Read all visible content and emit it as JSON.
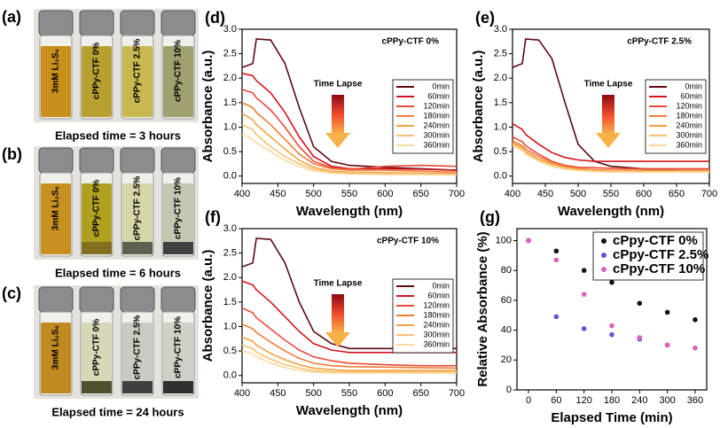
{
  "photo_panels": [
    {
      "label": "(a)",
      "caption": "Elapsed time = 3 hours",
      "vial_labels": [
        "3mM Li₂S₆",
        "cPPy-CTF 0%",
        "cPPy-CTF 2.5%",
        "cPPy-CTF 10%"
      ]
    },
    {
      "label": "(b)",
      "caption": "Elapsed time = 6 hours",
      "vial_labels": [
        "3mM Li₂S₆",
        "cPPy-CTF 0%",
        "cPPy-CTF 2.5%",
        "cPPy-CTF 10%"
      ]
    },
    {
      "label": "(c)",
      "caption": "Elapsed time = 24 hours",
      "vial_labels": [
        "3mM Li₂S₆",
        "cPPy-CTF 0%",
        "cPPy-CTF 2.5%",
        "cPPy-CTF 10%"
      ]
    }
  ],
  "chart_data": [
    {
      "type": "line",
      "panel_label": "(d)",
      "title": "cPPy-CTF 0%",
      "annotation": "Time Lapse",
      "x_label": "Wavelength (nm)",
      "y_label": "Absorbance (a.u.)",
      "x": [
        400,
        415,
        420,
        440,
        460,
        480,
        500,
        525,
        550,
        600,
        650,
        700
      ],
      "series": [
        {
          "name": "0min",
          "color": "#5c0a12",
          "values": [
            2.22,
            2.3,
            2.8,
            2.78,
            2.3,
            1.4,
            0.6,
            0.3,
            0.22,
            0.18,
            0.15,
            0.12
          ]
        },
        {
          "name": "60min",
          "color": "#d2141e",
          "values": [
            2.1,
            2.05,
            1.95,
            1.7,
            1.3,
            0.8,
            0.4,
            0.2,
            0.15,
            0.15,
            0.14,
            0.12
          ]
        },
        {
          "name": "120min",
          "color": "#e84a3a",
          "values": [
            1.77,
            1.7,
            1.6,
            1.35,
            1.0,
            0.6,
            0.3,
            0.17,
            0.14,
            0.2,
            0.22,
            0.2
          ]
        },
        {
          "name": "180min",
          "color": "#f07a38",
          "values": [
            1.5,
            1.4,
            1.3,
            1.05,
            0.75,
            0.45,
            0.25,
            0.15,
            0.12,
            0.12,
            0.1,
            0.08
          ]
        },
        {
          "name": "240min",
          "color": "#f5a040",
          "values": [
            1.28,
            1.15,
            1.05,
            0.8,
            0.55,
            0.32,
            0.18,
            0.1,
            0.08,
            0.07,
            0.06,
            0.05
          ]
        },
        {
          "name": "300min",
          "color": "#f8c070",
          "values": [
            1.05,
            0.95,
            0.85,
            0.6,
            0.4,
            0.25,
            0.14,
            0.08,
            0.06,
            0.05,
            0.04,
            0.03
          ]
        },
        {
          "name": "360min",
          "color": "#fbd9a0",
          "values": [
            0.85,
            0.75,
            0.68,
            0.5,
            0.32,
            0.2,
            0.1,
            0.06,
            0.04,
            0.03,
            0.03,
            0.02
          ]
        }
      ],
      "xlim": [
        400,
        700
      ],
      "ylim": [
        -0.15,
        3.0
      ],
      "xticks": [
        400,
        450,
        500,
        550,
        600,
        650,
        700
      ],
      "yticks": [
        {
          "value": 0,
          "label": "0.0"
        },
        0.5,
        {
          "value": 1,
          "label": "1.0"
        },
        1.5,
        {
          "value": 2,
          "label": "2.0"
        },
        2.5,
        {
          "value": 3,
          "label": "3.0"
        }
      ]
    },
    {
      "type": "line",
      "panel_label": "(e)",
      "title": "cPPy-CTF 2.5%",
      "annotation": "Time Lapse",
      "x_label": "Wavelength (nm)",
      "y_label": "Absorbance (a.u.)",
      "x": [
        400,
        415,
        420,
        440,
        460,
        480,
        500,
        525,
        550,
        600,
        650,
        700
      ],
      "series": [
        {
          "name": "0min",
          "color": "#5c0a12",
          "values": [
            2.22,
            2.3,
            2.8,
            2.78,
            2.4,
            1.5,
            0.65,
            0.3,
            0.2,
            0.15,
            0.12,
            0.1
          ]
        },
        {
          "name": "60min",
          "color": "#d2141e",
          "values": [
            1.07,
            0.95,
            0.85,
            0.65,
            0.48,
            0.38,
            0.33,
            0.3,
            0.3,
            0.3,
            0.3,
            0.3
          ]
        },
        {
          "name": "120min",
          "color": "#e84a3a",
          "values": [
            0.8,
            0.7,
            0.62,
            0.45,
            0.3,
            0.22,
            0.18,
            0.17,
            0.16,
            0.15,
            0.15,
            0.15
          ]
        },
        {
          "name": "180min",
          "color": "#f07a38",
          "values": [
            0.72,
            0.62,
            0.55,
            0.4,
            0.28,
            0.2,
            0.15,
            0.13,
            0.12,
            0.12,
            0.12,
            0.12
          ]
        },
        {
          "name": "240min",
          "color": "#f5a040",
          "values": [
            0.68,
            0.58,
            0.5,
            0.35,
            0.25,
            0.18,
            0.14,
            0.12,
            0.11,
            0.1,
            0.1,
            0.1
          ]
        },
        {
          "name": "300min",
          "color": "#f8c070",
          "values": [
            0.65,
            0.55,
            0.47,
            0.32,
            0.22,
            0.16,
            0.12,
            0.1,
            0.1,
            0.09,
            0.09,
            0.09
          ]
        },
        {
          "name": "360min",
          "color": "#fbd9a0",
          "values": [
            0.62,
            0.52,
            0.45,
            0.3,
            0.2,
            0.14,
            0.11,
            0.09,
            0.08,
            0.08,
            0.08,
            0.08
          ]
        }
      ],
      "xlim": [
        400,
        700
      ],
      "ylim": [
        -0.15,
        3.0
      ],
      "xticks": [
        400,
        450,
        500,
        550,
        600,
        650,
        700
      ],
      "yticks": [
        {
          "value": 0,
          "label": "0.0"
        },
        0.5,
        {
          "value": 1,
          "label": "1.0"
        },
        1.5,
        {
          "value": 2,
          "label": "2.0"
        },
        2.5,
        {
          "value": 3,
          "label": "3.0"
        }
      ]
    },
    {
      "type": "line",
      "panel_label": "(f)",
      "title": "cPPy-CTF 10%",
      "annotation": "Time Lapse",
      "x_label": "Wavelength (nm)",
      "y_label": "Absorbance (a.u.)",
      "x": [
        400,
        415,
        420,
        440,
        460,
        480,
        500,
        525,
        550,
        600,
        650,
        700
      ],
      "series": [
        {
          "name": "0min",
          "color": "#5c0a12",
          "values": [
            2.22,
            2.3,
            2.8,
            2.78,
            2.3,
            1.5,
            0.9,
            0.65,
            0.55,
            0.55,
            0.55,
            0.55
          ]
        },
        {
          "name": "60min",
          "color": "#d2141e",
          "values": [
            1.93,
            1.85,
            1.75,
            1.5,
            1.2,
            0.9,
            0.65,
            0.52,
            0.47,
            0.47,
            0.47,
            0.47
          ]
        },
        {
          "name": "120min",
          "color": "#e84a3a",
          "values": [
            1.38,
            1.28,
            1.18,
            0.95,
            0.72,
            0.52,
            0.38,
            0.3,
            0.25,
            0.22,
            0.2,
            0.2
          ]
        },
        {
          "name": "180min",
          "color": "#f07a38",
          "values": [
            1.05,
            0.95,
            0.88,
            0.68,
            0.5,
            0.35,
            0.25,
            0.2,
            0.18,
            0.17,
            0.16,
            0.15
          ]
        },
        {
          "name": "240min",
          "color": "#f5a040",
          "values": [
            0.78,
            0.7,
            0.62,
            0.45,
            0.32,
            0.22,
            0.15,
            0.12,
            0.1,
            0.1,
            0.1,
            0.1
          ]
        },
        {
          "name": "300min",
          "color": "#f8c070",
          "values": [
            0.62,
            0.55,
            0.48,
            0.33,
            0.22,
            0.15,
            0.1,
            0.08,
            0.07,
            0.07,
            0.07,
            0.07
          ]
        },
        {
          "name": "360min",
          "color": "#fbd9a0",
          "values": [
            0.5,
            0.44,
            0.38,
            0.25,
            0.16,
            0.1,
            0.07,
            0.05,
            0.05,
            0.05,
            0.05,
            0.05
          ]
        }
      ],
      "xlim": [
        400,
        700
      ],
      "ylim": [
        -0.15,
        3.0
      ],
      "xticks": [
        400,
        450,
        500,
        550,
        600,
        650,
        700
      ],
      "yticks": [
        {
          "value": 0,
          "label": "0.0"
        },
        0.5,
        {
          "value": 1,
          "label": "1.0"
        },
        1.5,
        {
          "value": 2,
          "label": "2.0"
        },
        2.5,
        {
          "value": 3,
          "label": "3.0"
        }
      ]
    },
    {
      "type": "scatter",
      "panel_label": "(g)",
      "legend": "upper right",
      "x_label": "Elapsed Time (min)",
      "y_label": "Relative Absorbance (%)",
      "x": [
        0,
        60,
        120,
        180,
        240,
        300,
        360
      ],
      "series": [
        {
          "name": "cPpy-CTF 0%",
          "color": "#111111",
          "values": [
            100,
            93,
            80,
            72,
            58,
            52,
            47
          ]
        },
        {
          "name": "cPpy-CTF 2.5%",
          "color": "#5a5ad8",
          "values": [
            100,
            49,
            41,
            37,
            34,
            30,
            28
          ]
        },
        {
          "name": "cPpy-CTF 10%",
          "color": "#e060c0",
          "values": [
            100,
            87,
            64,
            43,
            35,
            30,
            28
          ]
        }
      ],
      "xlim": [
        -25,
        385
      ],
      "ylim": [
        0,
        108
      ],
      "xticks": [
        0,
        60,
        120,
        180,
        240,
        300,
        360
      ],
      "yticks": [
        0,
        20,
        40,
        60,
        80,
        100
      ]
    }
  ]
}
